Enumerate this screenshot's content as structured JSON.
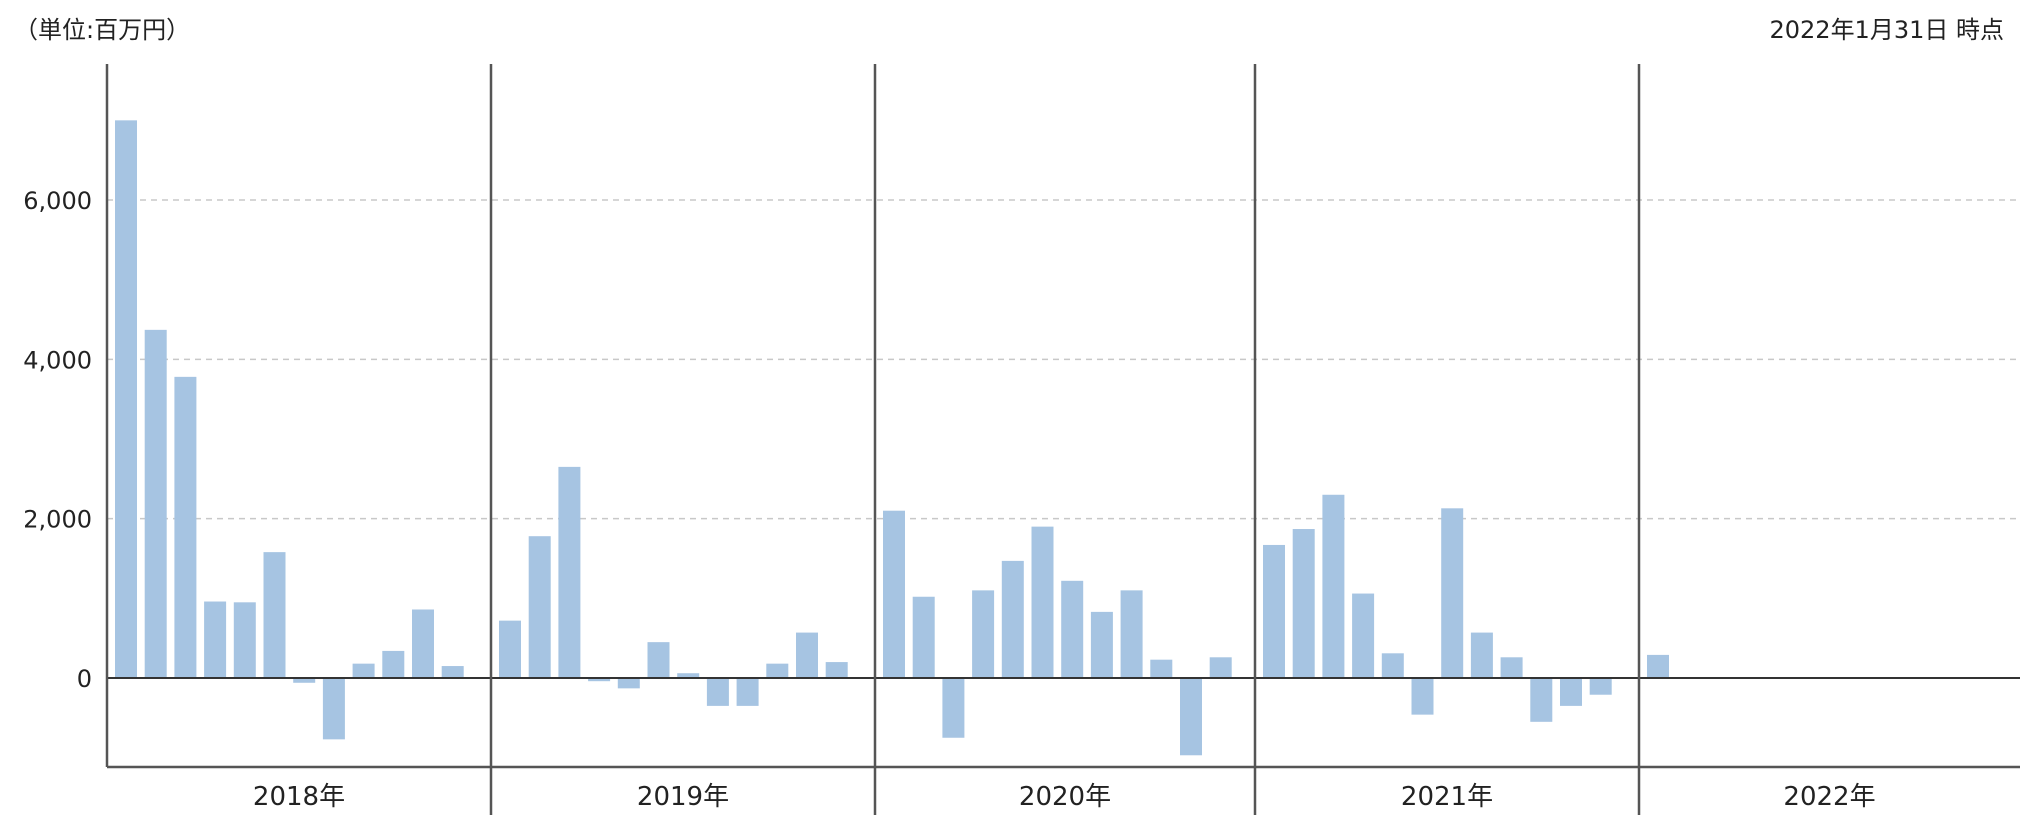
{
  "header": {
    "unit_label": "（単位:百万円）",
    "as_of_label": "2022年1月31日 時点"
  },
  "colors": {
    "bar": "#a6c4e2",
    "axis": "#555555",
    "grid": "#c8c8c8",
    "zero_line": "#333333"
  },
  "chart_data": {
    "type": "bar",
    "title": "",
    "xlabel": "",
    "ylabel": "",
    "unit": "百万円",
    "as_of": "2022年1月31日 時点",
    "ylim": [
      -1100,
      7500
    ],
    "yticks": [
      0,
      2000,
      4000,
      6000
    ],
    "ytick_labels": [
      "0",
      "2,000",
      "4,000",
      "6,000"
    ],
    "grid": "horizontal dashed",
    "groups": [
      {
        "label": "2018年",
        "values": [
          7000,
          4370,
          3780,
          960,
          950,
          1580,
          -60,
          -770,
          180,
          340,
          860,
          150
        ]
      },
      {
        "label": "2019年",
        "values": [
          720,
          1780,
          2650,
          -40,
          -130,
          450,
          60,
          -350,
          -350,
          180,
          570,
          200
        ]
      },
      {
        "label": "2020年",
        "values": [
          2100,
          1020,
          -750,
          1100,
          1470,
          1900,
          1220,
          830,
          1100,
          230,
          -970,
          260
        ]
      },
      {
        "label": "2021年",
        "values": [
          1670,
          1870,
          2300,
          1060,
          310,
          -460,
          2130,
          570,
          260,
          -550,
          -350,
          -210
        ]
      },
      {
        "label": "2022年",
        "values": [
          290
        ]
      }
    ]
  }
}
